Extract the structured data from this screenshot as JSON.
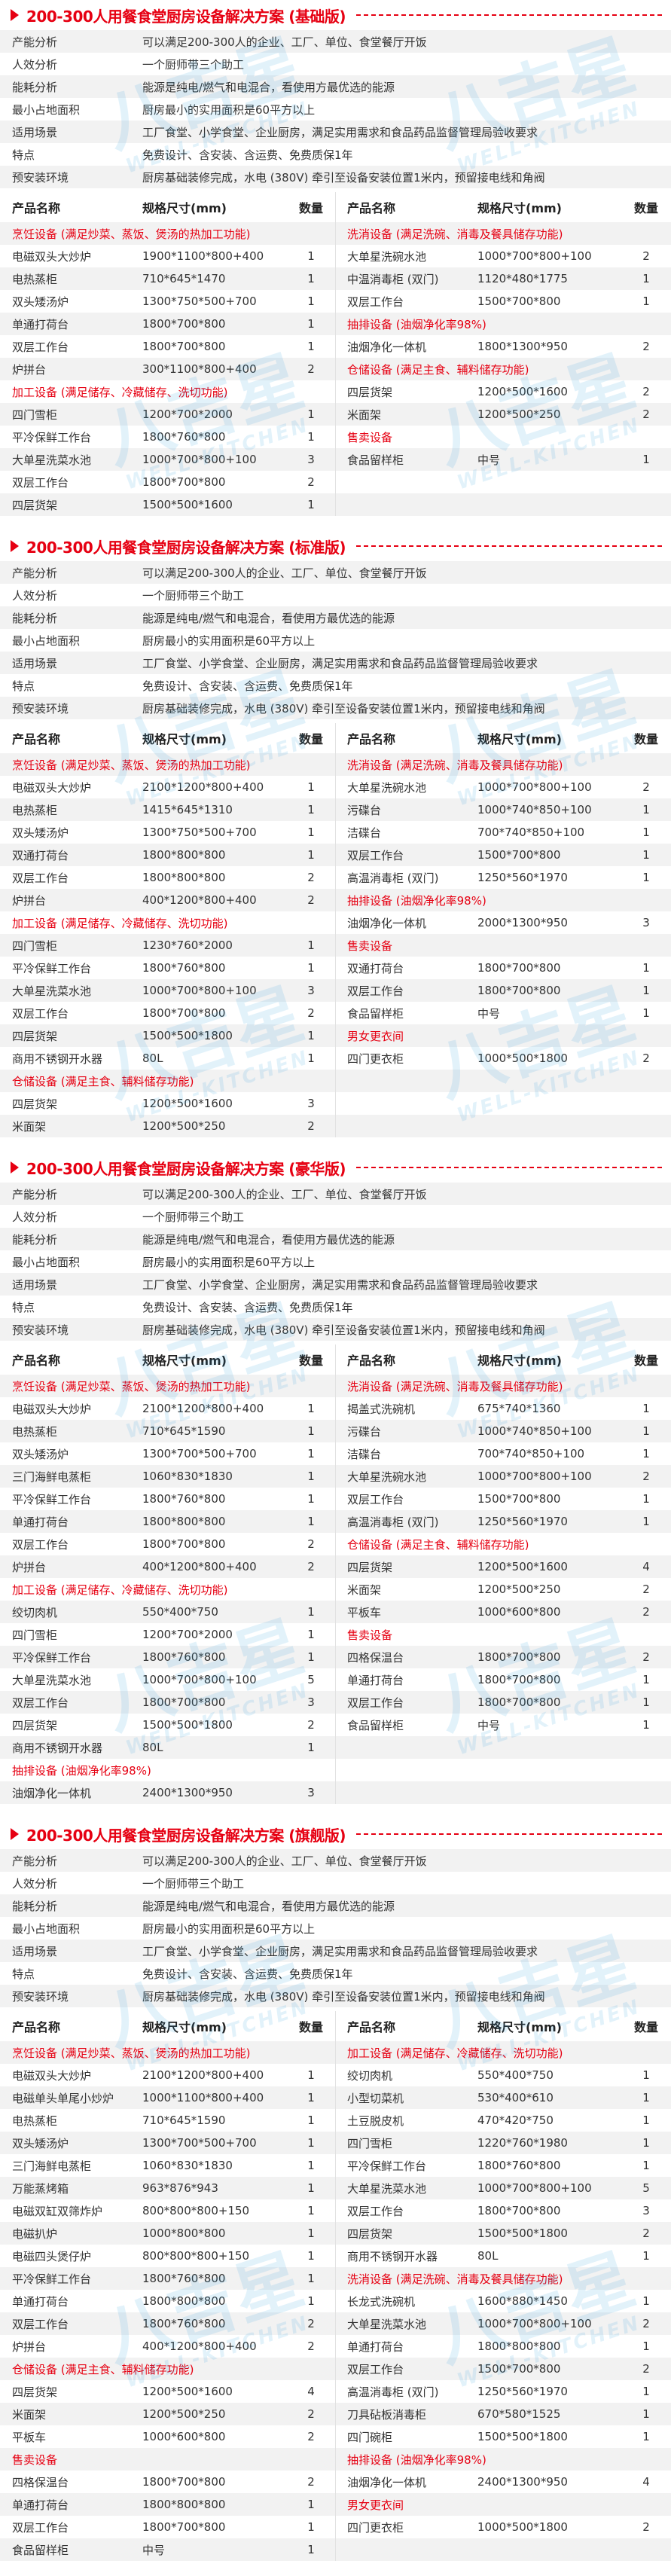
{
  "watermark": {
    "logo_cn": "八吉星",
    "logo_en": "WELL-KITCHEN",
    "color": "#2a9fe0"
  },
  "colors": {
    "accent": "#e60012",
    "stripe": "#f2f2f2",
    "text": "#333333"
  },
  "table_headers": {
    "name": "产品名称",
    "spec": "规格尺寸(mm)",
    "qty": "数量"
  },
  "info_rows": [
    {
      "label": "产能分析",
      "value": "可以满足200-300人的企业、工厂、单位、食堂餐厅开饭"
    },
    {
      "label": "人效分析",
      "value": "一个厨师带三个助工"
    },
    {
      "label": "能耗分析",
      "value": "能源是纯电/燃气和电混合，看使用方最优选的能源"
    },
    {
      "label": "最小占地面积",
      "value": "厨房最小的实用面积是60平方以上"
    },
    {
      "label": "适用场景",
      "value": "工厂食堂、小学食堂、企业厨房，满足实用需求和食品药品监督管理局验收要求"
    },
    {
      "label": "特点",
      "value": "免费设计、含安装、含运费、免费质保1年"
    },
    {
      "label": "预安装环境",
      "value": "厨房基础装修完成，水电 (380V) 牵引至设备安装位置1米内，预留接电线和角阀"
    }
  ],
  "sections": [
    {
      "title": "200-300人用餐食堂厨房设备解决方案 (基础版)",
      "left": [
        {
          "category": "烹饪设备 (满足炒菜、蒸饭、煲汤的热加工功能)"
        },
        {
          "name": "电磁双头大炒炉",
          "spec": "1900*1100*800+400",
          "qty": "1"
        },
        {
          "name": "电热蒸柜",
          "spec": "710*645*1470",
          "qty": "1"
        },
        {
          "name": "双头矮汤炉",
          "spec": "1300*750*500+700",
          "qty": "1"
        },
        {
          "name": "单通打荷台",
          "spec": "1800*700*800",
          "qty": "1"
        },
        {
          "name": "双层工作台",
          "spec": "1800*700*800",
          "qty": "1"
        },
        {
          "name": "炉拼台",
          "spec": "300*1100*800+400",
          "qty": "2"
        },
        {
          "category": "加工设备 (满足储存、冷藏储存、洗切功能)"
        },
        {
          "name": "四门雪柜",
          "spec": "1200*700*2000",
          "qty": "1"
        },
        {
          "name": "平冷保鲜工作台",
          "spec": "1800*760*800",
          "qty": "1"
        },
        {
          "name": "大单星洗菜水池",
          "spec": "1000*700*800+100",
          "qty": "3"
        },
        {
          "name": "双层工作台",
          "spec": "1800*700*800",
          "qty": "2"
        },
        {
          "name": "四层货架",
          "spec": "1500*500*1600",
          "qty": "1"
        }
      ],
      "right": [
        {
          "category": "洗消设备 (满足洗碗、消毒及餐具储存功能)"
        },
        {
          "name": "大单星洗碗水池",
          "spec": "1000*700*800+100",
          "qty": "2"
        },
        {
          "name": "中温消毒柜 (双门)",
          "spec": "1120*480*1775",
          "qty": "1"
        },
        {
          "name": "双层工作台",
          "spec": "1500*700*800",
          "qty": "1"
        },
        {
          "category": "抽排设备 (油烟净化率98%)"
        },
        {
          "name": "油烟净化一体机",
          "spec": "1800*1300*950",
          "qty": "2"
        },
        {
          "category": "仓储设备 (满足主食、辅料储存功能)"
        },
        {
          "name": "四层货架",
          "spec": "1200*500*1600",
          "qty": "2"
        },
        {
          "name": "米面架",
          "spec": "1200*500*250",
          "qty": "2"
        },
        {
          "category": "售卖设备"
        },
        {
          "name": "食品留样柜",
          "spec": "中号",
          "qty": "1"
        }
      ]
    },
    {
      "title": "200-300人用餐食堂厨房设备解决方案 (标准版)",
      "left": [
        {
          "category": "烹饪设备 (满足炒菜、蒸饭、煲汤的热加工功能)"
        },
        {
          "name": "电磁双头大炒炉",
          "spec": "2100*1200*800+400",
          "qty": "1"
        },
        {
          "name": "电热蒸柜",
          "spec": "1415*645*1310",
          "qty": "1"
        },
        {
          "name": "双头矮汤炉",
          "spec": "1300*750*500+700",
          "qty": "1"
        },
        {
          "name": "双通打荷台",
          "spec": "1800*800*800",
          "qty": "1"
        },
        {
          "name": "双层工作台",
          "spec": "1800*800*800",
          "qty": "2"
        },
        {
          "name": "炉拼台",
          "spec": "400*1200*800+400",
          "qty": "2"
        },
        {
          "category": "加工设备 (满足储存、冷藏储存、洗切功能)"
        },
        {
          "name": "四门雪柜",
          "spec": "1230*760*2000",
          "qty": "1"
        },
        {
          "name": "平冷保鲜工作台",
          "spec": "1800*760*800",
          "qty": "1"
        },
        {
          "name": "大单星洗菜水池",
          "spec": "1000*700*800+100",
          "qty": "3"
        },
        {
          "name": "双层工作台",
          "spec": "1800*700*800",
          "qty": "2"
        },
        {
          "name": "四层货架",
          "spec": "1500*500*1800",
          "qty": "1"
        },
        {
          "name": "商用不锈钢开水器",
          "spec": "80L",
          "qty": "1"
        },
        {
          "category": "仓储设备 (满足主食、辅料储存功能)"
        },
        {
          "name": "四层货架",
          "spec": "1200*500*1600",
          "qty": "3"
        },
        {
          "name": "米面架",
          "spec": "1200*500*250",
          "qty": "2"
        }
      ],
      "right": [
        {
          "category": "洗消设备 (满足洗碗、消毒及餐具储存功能)"
        },
        {
          "name": "大单星洗碗水池",
          "spec": "1000*700*800+100",
          "qty": "2"
        },
        {
          "name": "污碟台",
          "spec": "1000*740*850+100",
          "qty": "1"
        },
        {
          "name": "洁碟台",
          "spec": "700*740*850+100",
          "qty": "1"
        },
        {
          "name": "双层工作台",
          "spec": "1500*700*800",
          "qty": "1"
        },
        {
          "name": "高温消毒柜 (双门)",
          "spec": "1250*560*1970",
          "qty": "1"
        },
        {
          "category": "抽排设备 (油烟净化率98%)"
        },
        {
          "name": "油烟净化一体机",
          "spec": "2000*1300*950",
          "qty": "3"
        },
        {
          "category": "售卖设备"
        },
        {
          "name": "双通打荷台",
          "spec": "1800*700*800",
          "qty": "1"
        },
        {
          "name": "双层工作台",
          "spec": "1800*700*800",
          "qty": "1"
        },
        {
          "name": "食品留样柜",
          "spec": "中号",
          "qty": "1"
        },
        {
          "category": "男女更衣间"
        },
        {
          "name": "四门更衣柜",
          "spec": "1000*500*1800",
          "qty": "2"
        }
      ]
    },
    {
      "title": "200-300人用餐食堂厨房设备解决方案 (豪华版)",
      "left": [
        {
          "category": "烹饪设备 (满足炒菜、蒸饭、煲汤的热加工功能)"
        },
        {
          "name": "电磁双头大炒炉",
          "spec": "2100*1200*800+400",
          "qty": "1"
        },
        {
          "name": "电热蒸柜",
          "spec": "710*645*1590",
          "qty": "1"
        },
        {
          "name": "双头矮汤炉",
          "spec": "1300*700*500+700",
          "qty": "1"
        },
        {
          "name": "三门海鲜电蒸柜",
          "spec": "1060*830*1830",
          "qty": "1"
        },
        {
          "name": "平冷保鲜工作台",
          "spec": "1800*760*800",
          "qty": "1"
        },
        {
          "name": "单通打荷台",
          "spec": "1800*800*800",
          "qty": "1"
        },
        {
          "name": "双层工作台",
          "spec": "1800*700*800",
          "qty": "2"
        },
        {
          "name": "炉拼台",
          "spec": "400*1200*800+400",
          "qty": "2"
        },
        {
          "category": "加工设备 (满足储存、冷藏储存、洗切功能)"
        },
        {
          "name": "绞切肉机",
          "spec": "550*400*750",
          "qty": "1"
        },
        {
          "name": "四门雪柜",
          "spec": "1200*700*2000",
          "qty": "1"
        },
        {
          "name": "平冷保鲜工作台",
          "spec": "1800*760*800",
          "qty": "1"
        },
        {
          "name": "大单星洗菜水池",
          "spec": "1000*700*800+100",
          "qty": "5"
        },
        {
          "name": "双层工作台",
          "spec": "1800*700*800",
          "qty": "3"
        },
        {
          "name": "四层货架",
          "spec": "1500*500*1800",
          "qty": "2"
        },
        {
          "name": "商用不锈钢开水器",
          "spec": "80L",
          "qty": "1"
        },
        {
          "category": "抽排设备 (油烟净化率98%)"
        },
        {
          "name": "油烟净化一体机",
          "spec": "2400*1300*950",
          "qty": "3"
        }
      ],
      "right": [
        {
          "category": "洗消设备 (满足洗碗、消毒及餐具储存功能)"
        },
        {
          "name": "揭盖式洗碗机",
          "spec": "675*740*1360",
          "qty": "1"
        },
        {
          "name": "污碟台",
          "spec": "1000*740*850+100",
          "qty": "1"
        },
        {
          "name": "洁碟台",
          "spec": "700*740*850+100",
          "qty": "1"
        },
        {
          "name": "大单星洗碗水池",
          "spec": "1000*700*800+100",
          "qty": "2"
        },
        {
          "name": "双层工作台",
          "spec": "1500*700*800",
          "qty": "1"
        },
        {
          "name": "高温消毒柜 (双门)",
          "spec": "1250*560*1970",
          "qty": "1"
        },
        {
          "category": "仓储设备 (满足主食、辅料储存功能)"
        },
        {
          "name": "四层货架",
          "spec": "1200*500*1600",
          "qty": "4"
        },
        {
          "name": "米面架",
          "spec": "1200*500*250",
          "qty": "2"
        },
        {
          "name": "平板车",
          "spec": "1000*600*800",
          "qty": "2"
        },
        {
          "category": "售卖设备"
        },
        {
          "name": "四格保温台",
          "spec": "1800*700*800",
          "qty": "2"
        },
        {
          "name": "单通打荷台",
          "spec": "1800*700*800",
          "qty": "1"
        },
        {
          "name": "双层工作台",
          "spec": "1800*700*800",
          "qty": "1"
        },
        {
          "name": "食品留样柜",
          "spec": "中号",
          "qty": "1"
        }
      ]
    },
    {
      "title": "200-300人用餐食堂厨房设备解决方案 (旗舰版)",
      "left": [
        {
          "category": "烹饪设备 (满足炒菜、蒸饭、煲汤的热加工功能)"
        },
        {
          "name": "电磁双头大炒炉",
          "spec": "2100*1200*800+400",
          "qty": "1"
        },
        {
          "name": "电磁单头单尾小炒炉",
          "spec": "1000*1100*800+400",
          "qty": "1"
        },
        {
          "name": "电热蒸柜",
          "spec": "710*645*1590",
          "qty": "1"
        },
        {
          "name": "双头矮汤炉",
          "spec": "1300*700*500+700",
          "qty": "1"
        },
        {
          "name": "三门海鲜电蒸柜",
          "spec": "1060*830*1830",
          "qty": "1"
        },
        {
          "name": "万能蒸烤箱",
          "spec": "963*876*943",
          "qty": "1"
        },
        {
          "name": "电磁双缸双筛炸炉",
          "spec": "800*800*800+150",
          "qty": "1"
        },
        {
          "name": "电磁扒炉",
          "spec": "1000*800*800",
          "qty": "1"
        },
        {
          "name": "电磁四头煲仔炉",
          "spec": "800*800*800+150",
          "qty": "1"
        },
        {
          "name": "平冷保鲜工作台",
          "spec": "1800*760*800",
          "qty": "1"
        },
        {
          "name": "单通打荷台",
          "spec": "1800*800*800",
          "qty": "1"
        },
        {
          "name": "双层工作台",
          "spec": "1800*760*800",
          "qty": "2"
        },
        {
          "name": "炉拼台",
          "spec": "400*1200*800+400",
          "qty": "2"
        },
        {
          "category": "仓储设备 (满足主食、辅料储存功能)"
        },
        {
          "name": "四层货架",
          "spec": "1200*500*1600",
          "qty": "4"
        },
        {
          "name": "米面架",
          "spec": "1200*500*250",
          "qty": "2"
        },
        {
          "name": "平板车",
          "spec": "1000*600*800",
          "qty": "2"
        },
        {
          "category": "售卖设备"
        },
        {
          "name": "四格保温台",
          "spec": "1800*700*800",
          "qty": "2"
        },
        {
          "name": "单通打荷台",
          "spec": "1800*800*800",
          "qty": "1"
        },
        {
          "name": "双层工作台",
          "spec": "1800*700*800",
          "qty": "1"
        },
        {
          "name": "食品留样柜",
          "spec": "中号",
          "qty": "1"
        }
      ],
      "right": [
        {
          "category": "加工设备 (满足储存、冷藏储存、洗切功能)"
        },
        {
          "name": "绞切肉机",
          "spec": "550*400*750",
          "qty": "1"
        },
        {
          "name": "小型切菜机",
          "spec": "530*400*610",
          "qty": "1"
        },
        {
          "name": "土豆脱皮机",
          "spec": "470*420*750",
          "qty": "1"
        },
        {
          "name": "四门雪柜",
          "spec": "1220*760*1980",
          "qty": "1"
        },
        {
          "name": "平冷保鲜工作台",
          "spec": "1800*760*800",
          "qty": "1"
        },
        {
          "name": "大单星洗菜水池",
          "spec": "1000*700*800+100",
          "qty": "5"
        },
        {
          "name": "双层工作台",
          "spec": "1800*700*800",
          "qty": "3"
        },
        {
          "name": "四层货架",
          "spec": "1500*500*1800",
          "qty": "2"
        },
        {
          "name": "商用不锈钢开水器",
          "spec": "80L",
          "qty": "1"
        },
        {
          "category": "洗消设备 (满足洗碗、消毒及餐具储存功能)"
        },
        {
          "name": "长龙式洗碗机",
          "spec": "1600*880*1450",
          "qty": "1"
        },
        {
          "name": "大单星洗菜水池",
          "spec": "1000*700*800+100",
          "qty": "2"
        },
        {
          "name": "单通打荷台",
          "spec": "1800*800*800",
          "qty": "1"
        },
        {
          "name": "双层工作台",
          "spec": "1500*700*800",
          "qty": "2"
        },
        {
          "name": "高温消毒柜 (双门)",
          "spec": "1250*560*1970",
          "qty": "1"
        },
        {
          "name": "刀具砧板消毒柜",
          "spec": "670*580*1525",
          "qty": "1"
        },
        {
          "name": "四门碗柜",
          "spec": "1500*500*1800",
          "qty": "1"
        },
        {
          "category": "抽排设备 (油烟净化率98%)"
        },
        {
          "name": "油烟净化一体机",
          "spec": "2400*1300*950",
          "qty": "4"
        },
        {
          "category": "男女更衣间"
        },
        {
          "name": "四门更衣柜",
          "spec": "1000*500*1800",
          "qty": "2"
        }
      ]
    }
  ]
}
